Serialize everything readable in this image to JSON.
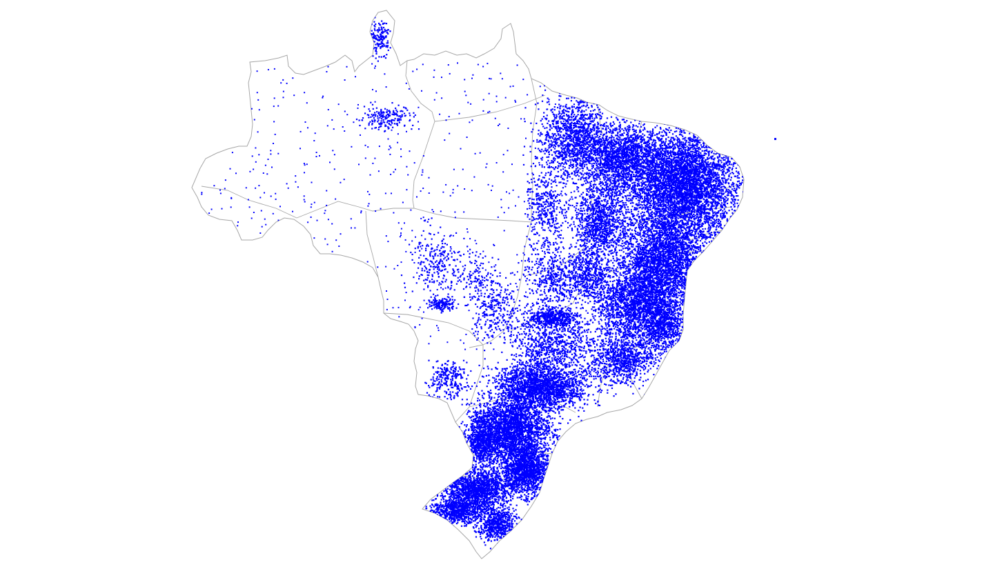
{
  "map": {
    "region": "Brazil",
    "background_color": "#ffffff",
    "border_color": "#a6a6a6",
    "point_color": "#0000ff",
    "legend": null,
    "title": null
  }
}
